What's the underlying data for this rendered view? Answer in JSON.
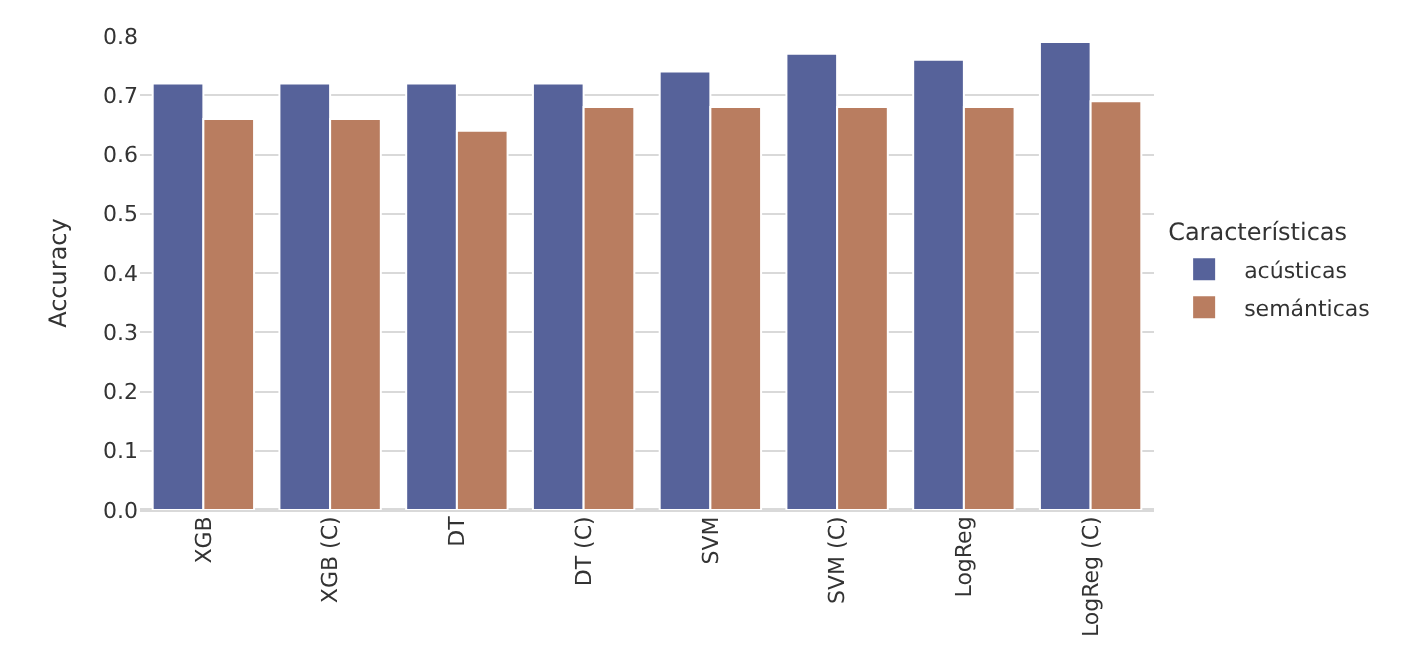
{
  "chart_data": {
    "type": "bar",
    "ylabel": "Accuracy",
    "legend_title": "Características",
    "legend": "right",
    "categories": [
      "XGB",
      "XGB (C)",
      "DT",
      "DT (C)",
      "SVM",
      "SVM (C)",
      "LogReg",
      "LogReg (C)"
    ],
    "series": [
      {
        "name": "acústicas",
        "color": "#56629a",
        "values": [
          0.72,
          0.72,
          0.72,
          0.72,
          0.74,
          0.77,
          0.76,
          0.79
        ]
      },
      {
        "name": "semánticas",
        "color": "#b97d60",
        "values": [
          0.66,
          0.66,
          0.64,
          0.68,
          0.68,
          0.68,
          0.68,
          0.69
        ]
      }
    ],
    "ylim": [
      0,
      0.8
    ],
    "yticks": [
      {
        "value": 0,
        "label": "0.0"
      },
      0.1,
      0.2,
      0.3,
      0.4,
      0.5,
      0.6,
      0.7,
      0.8
    ],
    "grid": "y"
  }
}
